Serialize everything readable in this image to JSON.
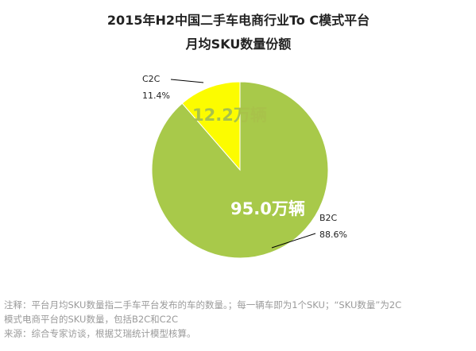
{
  "chart_data": {
    "type": "pie",
    "title_lines": [
      "2015年H2中国二手车电商行业To C模式平台",
      "月均SKU数量份额"
    ],
    "slices": [
      {
        "name": "C2C",
        "percent_label": "11.4%",
        "value_label": "12.2万辆",
        "value": 12.2,
        "share": 11.4,
        "color": "#fcfc00",
        "value_label_color": "#a8c24a"
      },
      {
        "name": "B2C",
        "percent_label": "88.6%",
        "value_label": "95.0万辆",
        "value": 95.0,
        "share": 88.6,
        "color": "#a8c94a",
        "value_label_color": "#ffffff"
      }
    ],
    "unit": "万辆"
  },
  "notes": {
    "line1": "注释：平台月均SKU数量指二手车平台发布的车的数量。；每一辆车即为1个SKU；“SKU数量”为2C",
    "line2": "模式电商平台的SKU数量，包括B2C和C2C",
    "line3": "来源：综合专家访谈，根据艾瑞统计模型核算。"
  }
}
